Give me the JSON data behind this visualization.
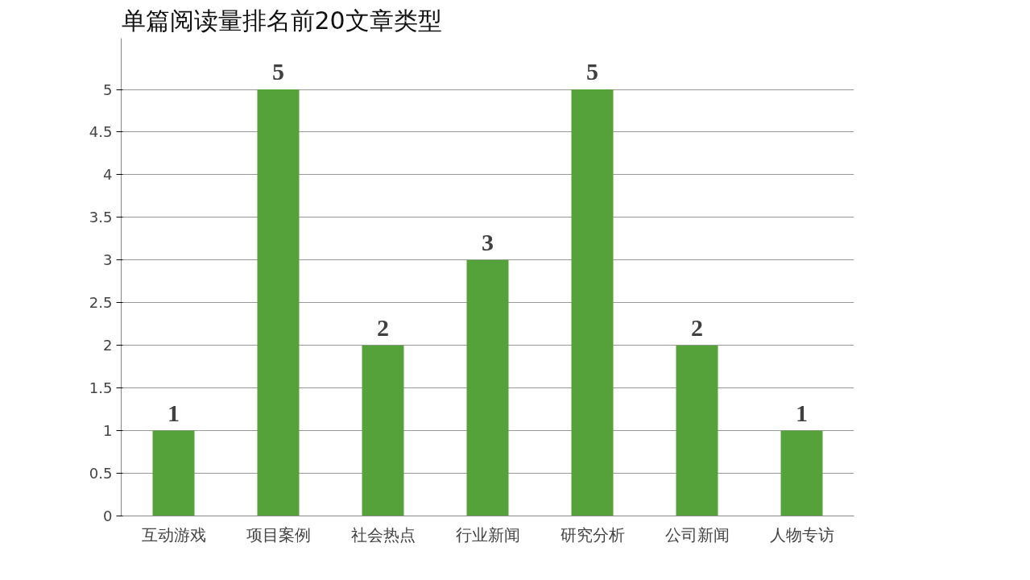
{
  "chart_data": {
    "type": "bar",
    "title": "单篇阅读量排名前20文章类型",
    "categories": [
      "互动游戏",
      "项目案例",
      "社会热点",
      "行业新闻",
      "研究分析",
      "公司新闻",
      "人物专访"
    ],
    "values": [
      1,
      5,
      2,
      3,
      5,
      2,
      1
    ],
    "color": "#56a23a",
    "ylim": [
      0,
      5.6
    ],
    "yticks": [
      0,
      0.5,
      1,
      1.5,
      2,
      2.5,
      3,
      3.5,
      4,
      4.5,
      5
    ],
    "grid": "y",
    "data_labels": true
  }
}
